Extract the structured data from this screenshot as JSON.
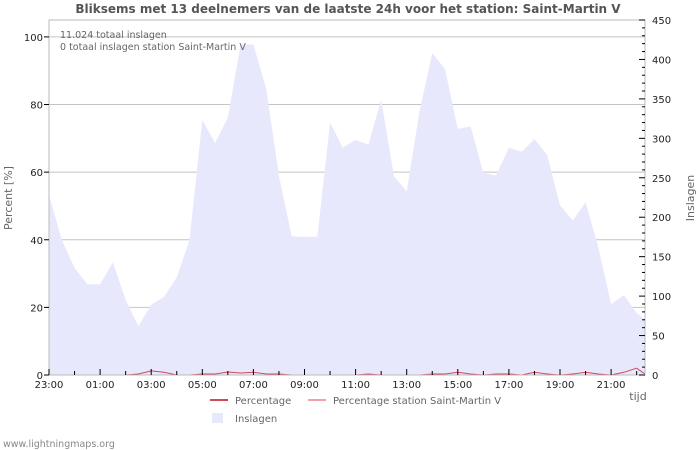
{
  "chart_data": {
    "type": "area",
    "title": "Bliksems met 13 deelnemers van de laatste 24h voor het station: Saint-Martin V",
    "xlabel": "tijd",
    "ylabel": "Percent   [%]",
    "ylabel_right": "Inslagen",
    "x_tick_labels": [
      "23:00",
      "01:00",
      "03:00",
      "05:00",
      "07:00",
      "09:00",
      "11:00",
      "13:00",
      "15:00",
      "17:00",
      "19:00",
      "21:00"
    ],
    "y_ticks_left": [
      0,
      20,
      40,
      60,
      80,
      100
    ],
    "y_ticks_right": [
      0,
      50,
      100,
      150,
      200,
      250,
      300,
      350,
      400,
      450
    ],
    "ylim_left": [
      0,
      105
    ],
    "ylim_right": [
      0,
      450
    ],
    "grid": true,
    "legend_position": "bottom",
    "annotations": [
      "11.024 totaal inslagen",
      "0 totaal inslagen station Saint-Martin V"
    ],
    "x": [
      "23:00",
      "23:30",
      "00:00",
      "00:30",
      "01:00",
      "01:30",
      "02:00",
      "02:30",
      "03:00",
      "03:30",
      "04:00",
      "04:30",
      "05:00",
      "05:30",
      "06:00",
      "06:30",
      "07:00",
      "07:30",
      "08:00",
      "08:30",
      "09:00",
      "09:30",
      "10:00",
      "10:30",
      "11:00",
      "11:30",
      "12:00",
      "12:30",
      "13:00",
      "13:30",
      "14:00",
      "14:30",
      "15:00",
      "15:30",
      "16:00",
      "16:30",
      "17:00",
      "17:30",
      "18:00",
      "18:30",
      "19:00",
      "19:30",
      "20:00",
      "20:30",
      "21:00",
      "21:30",
      "22:00",
      "22:20"
    ],
    "series": [
      {
        "name": "Inslagen",
        "axis": "right",
        "type": "area",
        "color": "#e8e8fc",
        "values": [
          228,
          171,
          136,
          115,
          115,
          143,
          95,
          62,
          89,
          99,
          124,
          171,
          323,
          294,
          326,
          419,
          419,
          363,
          252,
          176,
          175,
          175,
          320,
          288,
          298,
          292,
          349,
          252,
          233,
          334,
          408,
          388,
          312,
          315,
          256,
          253,
          288,
          283,
          299,
          279,
          215,
          196,
          219,
          162,
          90,
          101,
          79,
          70
        ]
      },
      {
        "name": "Percentage",
        "axis": "left",
        "type": "line",
        "color": "#d04a5a",
        "values": [
          0,
          0,
          0,
          0,
          0,
          0,
          0,
          0.3,
          1.2,
          0.8,
          0,
          0,
          0.3,
          0.3,
          0.9,
          0.6,
          0.8,
          0.3,
          0.3,
          0,
          0,
          0,
          0,
          0,
          0,
          0.3,
          0,
          0,
          0,
          0,
          0.3,
          0.3,
          0.8,
          0.3,
          0,
          0.3,
          0.3,
          0,
          0.8,
          0.3,
          0,
          0.3,
          0.8,
          0.3,
          0,
          0.8,
          2.0,
          0.3
        ]
      },
      {
        "name": "Percentage station Saint-Martin V",
        "axis": "left",
        "type": "line",
        "color": "#f4a0a8",
        "values": [
          0,
          0,
          0,
          0,
          0,
          0,
          0,
          0,
          0,
          0,
          0,
          0,
          0,
          0,
          0,
          0,
          0,
          0,
          0,
          0,
          0,
          0,
          0,
          0,
          0,
          0,
          0,
          0,
          0,
          0,
          0,
          0,
          0,
          0,
          0,
          0,
          0,
          0,
          0,
          0,
          0,
          0,
          0,
          0,
          0,
          0,
          0,
          0
        ]
      }
    ]
  },
  "legend": {
    "items": [
      {
        "label": "Percentage",
        "color": "#d04a5a"
      },
      {
        "label": "Percentage station Saint-Martin V",
        "color": "#f4a0a8"
      },
      {
        "label": "Inslagen",
        "color": "#e8e8fc"
      }
    ]
  },
  "footer": {
    "text": "www.lightningmaps.org"
  }
}
